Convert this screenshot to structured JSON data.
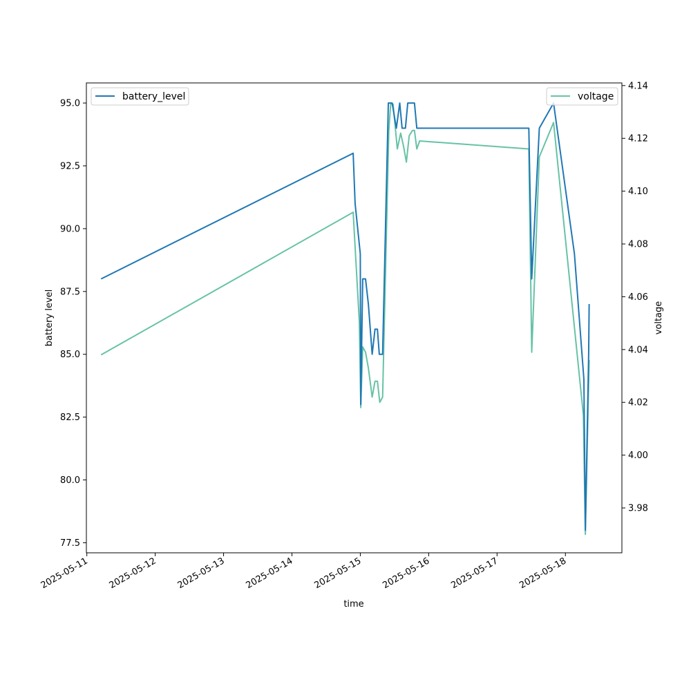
{
  "chart_data": {
    "type": "line",
    "xlabel": "time",
    "ylabel_left": "battery level",
    "ylabel_right": "voltage",
    "x_ticks": [
      "2025-05-11",
      "2025-05-12",
      "2025-05-13",
      "2025-05-14",
      "2025-05-15",
      "2025-05-16",
      "2025-05-17",
      "2025-05-18"
    ],
    "y_left_ticks": [
      "77.5",
      "80.0",
      "82.5",
      "85.0",
      "87.5",
      "90.0",
      "92.5",
      "95.0"
    ],
    "y_right_ticks": [
      "3.98",
      "4.00",
      "4.02",
      "4.04",
      "4.06",
      "4.08",
      "4.10",
      "4.12",
      "4.14"
    ],
    "xlim": [
      "2025-05-10T23:50",
      "2025-05-18T19:50"
    ],
    "ylim_left": [
      77.1,
      95.8
    ],
    "ylim_right": [
      3.963,
      4.141
    ],
    "grid": false,
    "series": [
      {
        "name": "battery_level",
        "axis": "left",
        "color": "#1f77b4",
        "legend": "upper-left",
        "points": [
          [
            "2025-05-11T05:00",
            88.0
          ],
          [
            "2025-05-14T21:30",
            93.0
          ],
          [
            "2025-05-14T22:10",
            91.0
          ],
          [
            "2025-05-15T00:00",
            89.0
          ],
          [
            "2025-05-15T00:10",
            83.0
          ],
          [
            "2025-05-15T00:50",
            88.0
          ],
          [
            "2025-05-15T01:50",
            88.0
          ],
          [
            "2025-05-15T02:50",
            87.0
          ],
          [
            "2025-05-15T04:10",
            85.0
          ],
          [
            "2025-05-15T05:10",
            86.0
          ],
          [
            "2025-05-15T06:00",
            86.0
          ],
          [
            "2025-05-15T06:40",
            85.0
          ],
          [
            "2025-05-15T07:50",
            85.0
          ],
          [
            "2025-05-15T09:50",
            95.0
          ],
          [
            "2025-05-15T11:10",
            95.0
          ],
          [
            "2025-05-15T12:40",
            94.0
          ],
          [
            "2025-05-15T13:50",
            95.0
          ],
          [
            "2025-05-15T14:40",
            94.0
          ],
          [
            "2025-05-15T15:50",
            94.0
          ],
          [
            "2025-05-15T16:40",
            95.0
          ],
          [
            "2025-05-15T19:00",
            95.0
          ],
          [
            "2025-05-15T19:50",
            94.0
          ],
          [
            "2025-05-17T11:10",
            94.0
          ],
          [
            "2025-05-17T12:10",
            88.0
          ],
          [
            "2025-05-17T14:50",
            94.0
          ],
          [
            "2025-05-17T19:50",
            95.0
          ],
          [
            "2025-05-18T03:10",
            89.0
          ],
          [
            "2025-05-18T06:30",
            84.0
          ],
          [
            "2025-05-18T07:00",
            78.0
          ],
          [
            "2025-05-18T08:10",
            85.0
          ],
          [
            "2025-05-18T08:20",
            87.0
          ]
        ]
      },
      {
        "name": "voltage",
        "axis": "right",
        "color": "#66c2a5",
        "legend": "upper-right",
        "points": [
          [
            "2025-05-11T05:00",
            4.038
          ],
          [
            "2025-05-14T21:30",
            4.092
          ],
          [
            "2025-05-14T23:40",
            4.05
          ],
          [
            "2025-05-15T00:10",
            4.018
          ],
          [
            "2025-05-15T00:50",
            4.041
          ],
          [
            "2025-05-15T01:50",
            4.039
          ],
          [
            "2025-05-15T02:50",
            4.033
          ],
          [
            "2025-05-15T04:10",
            4.022
          ],
          [
            "2025-05-15T05:10",
            4.028
          ],
          [
            "2025-05-15T06:00",
            4.028
          ],
          [
            "2025-05-15T06:50",
            4.02
          ],
          [
            "2025-05-15T07:50",
            4.022
          ],
          [
            "2025-05-15T10:00",
            4.123
          ],
          [
            "2025-05-15T10:40",
            4.133
          ],
          [
            "2025-05-15T11:30",
            4.133
          ],
          [
            "2025-05-15T13:00",
            4.116
          ],
          [
            "2025-05-15T14:10",
            4.122
          ],
          [
            "2025-05-15T15:10",
            4.117
          ],
          [
            "2025-05-15T16:10",
            4.111
          ],
          [
            "2025-05-15T17:10",
            4.121
          ],
          [
            "2025-05-15T18:20",
            4.123
          ],
          [
            "2025-05-15T19:00",
            4.123
          ],
          [
            "2025-05-15T19:50",
            4.116
          ],
          [
            "2025-05-15T20:50",
            4.119
          ],
          [
            "2025-05-17T11:10",
            4.116
          ],
          [
            "2025-05-17T12:10",
            4.039
          ],
          [
            "2025-05-17T14:50",
            4.113
          ],
          [
            "2025-05-17T19:50",
            4.126
          ],
          [
            "2025-05-18T06:20",
            4.015
          ],
          [
            "2025-05-18T07:00",
            3.97
          ],
          [
            "2025-05-18T08:20",
            4.036
          ]
        ]
      }
    ]
  }
}
